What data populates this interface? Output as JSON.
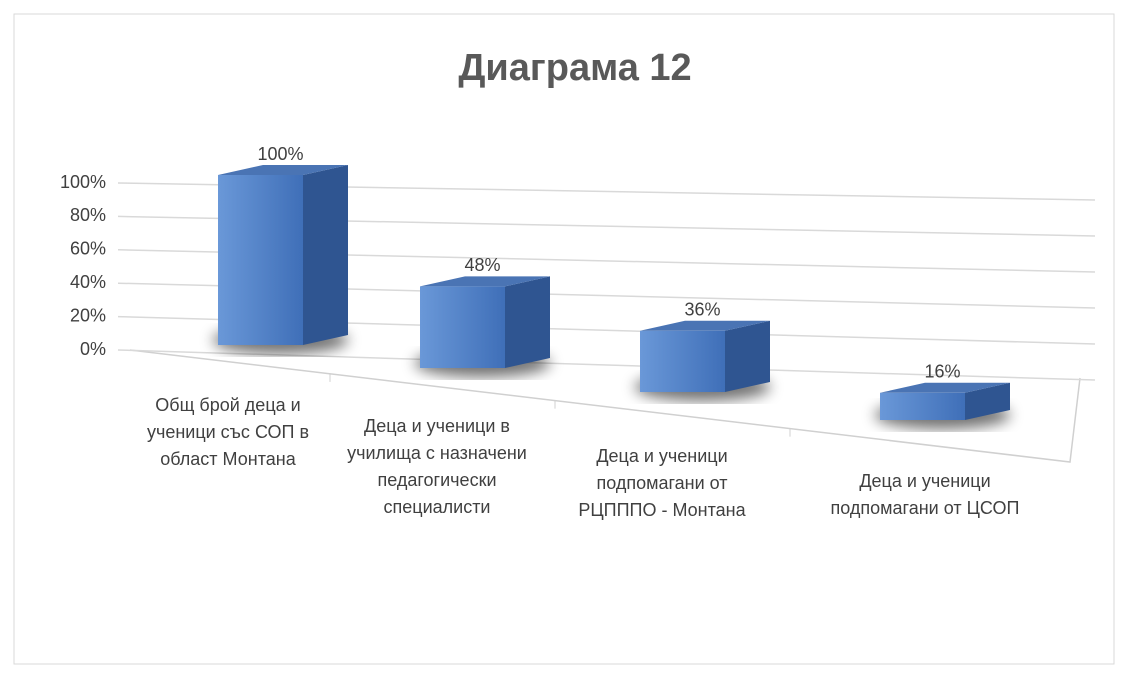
{
  "chart_data": {
    "type": "bar3d",
    "title": "Диаграма 12",
    "categories": [
      "Общ брой деца и ученици със СОП в област Монтана",
      "Деца и ученици в училища с назначени педагогически специалисти",
      "Деца и ученици подпомагани от РЦПППО - Монтана",
      "Деца и ученици подпомагани от ЦСОП"
    ],
    "values": [
      100,
      48,
      36,
      16
    ],
    "value_labels": [
      "100%",
      "48%",
      "36%",
      "16%"
    ],
    "color": "#4f7fc7",
    "ylim": [
      0,
      100
    ],
    "yticks": [
      {
        "value": 0,
        "label": "0%"
      },
      {
        "value": 20,
        "label": "20%"
      },
      {
        "value": 40,
        "label": "40%"
      },
      {
        "value": 60,
        "label": "60%"
      },
      {
        "value": 80,
        "label": "80%"
      },
      {
        "value": 100,
        "label": "100%"
      }
    ],
    "grid": true
  }
}
